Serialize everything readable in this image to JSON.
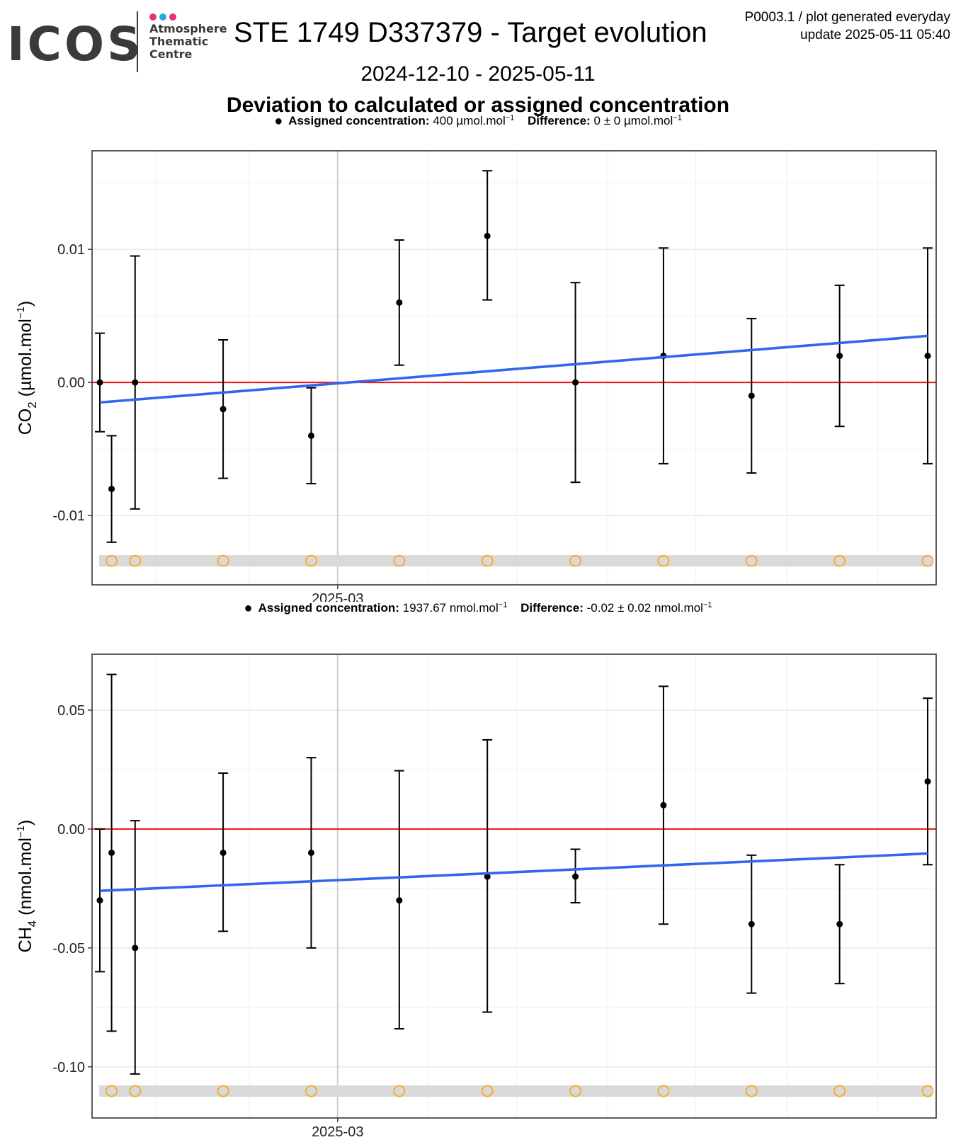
{
  "header": {
    "logo_text": "ICOS",
    "logo_sub": [
      "Atmosphere",
      "Thematic",
      "Centre"
    ],
    "logo_dot_colors": [
      "#e6317c",
      "#2aa7de",
      "#e6317c"
    ],
    "title": "STE 1749 D337379 - Target evolution",
    "meta_line1": "P0003.1 / plot generated everyday",
    "meta_line2": "update  2025-05-11 05:40",
    "date_range": "2024-12-10 - 2025-05-11",
    "deviation_title": "Deviation to calculated or assigned concentration"
  },
  "colors": {
    "trend": "#3366ee",
    "zero_line": "#ee1111",
    "points": "#000000",
    "flag_circles": "#ffa500",
    "flag_band": "#d9d9d9",
    "grid_major": "#e6e6e6",
    "grid_minor": "#f2f2f2"
  },
  "chart_data": [
    {
      "type": "scatter",
      "gas": "CO2",
      "legend": {
        "assigned_label": "Assigned concentration:",
        "assigned_value": "400 µmol.mol",
        "assigned_sup": "−1",
        "difference_label": "Difference:",
        "difference_value": "0 ± 0 µmol.mol",
        "difference_sup": "−1"
      },
      "ylabel_main": "CO",
      "ylabel_sub": "2",
      "ylabel_unit": " (µmol.mol",
      "ylabel_sup": "−1",
      "ylabel_end": ")",
      "x_dates": [
        "2024-12-10",
        "2024-12-14",
        "2024-12-22",
        "2025-01-21",
        "2025-02-20",
        "2025-03-22",
        "2025-04-21",
        "2025-05-11"
      ],
      "x_tick": "2025-03",
      "ylim": [
        -0.0152,
        0.0174
      ],
      "yticks": [
        -0.01,
        0.0,
        0.01
      ],
      "ytick_labels": [
        "-0.01",
        "0.00",
        "0.01"
      ],
      "points": [
        {
          "date": "2024-12-10",
          "y": 0.0,
          "lo": -0.0037,
          "hi": 0.0037
        },
        {
          "date": "2024-12-14",
          "y": -0.008,
          "lo": -0.012,
          "hi": -0.004
        },
        {
          "date": "2024-12-22",
          "y": 0.0,
          "lo": -0.0095,
          "hi": 0.0095
        },
        {
          "date": "2025-01-21",
          "y": -0.002,
          "lo": -0.0072,
          "hi": 0.0032
        },
        {
          "date": "2025-02-20",
          "y": -0.004,
          "lo": -0.0076,
          "hi": -0.0004
        },
        {
          "date": "2025-03-22",
          "y": 0.006,
          "lo": 0.0013,
          "hi": 0.0107
        },
        {
          "date": "2025-04-21",
          "y": 0.011,
          "lo": 0.0062,
          "hi": 0.0159
        },
        {
          "date": "2025-05-21",
          "y": 0.0,
          "lo": -0.0075,
          "hi": 0.0075
        },
        {
          "date": "2025-06-20",
          "y": 0.002,
          "lo": -0.0061,
          "hi": 0.0101
        },
        {
          "date": "2025-07-20",
          "y": -0.001,
          "lo": -0.0068,
          "hi": 0.0048
        },
        {
          "date": "2025-08-19",
          "y": 0.002,
          "lo": -0.0033,
          "hi": 0.0073
        },
        {
          "date": "2025-09-18",
          "y": 0.002,
          "lo": -0.0061,
          "hi": 0.0101
        }
      ],
      "trend": {
        "y_start": -0.0015,
        "y_end": 0.0035
      },
      "flag_y": -0.0134,
      "flag_dates": [
        "2024-12-14",
        "2024-12-22",
        "2025-01-21",
        "2025-02-20",
        "2025-03-22",
        "2025-04-21",
        "2025-05-21",
        "2025-06-20",
        "2025-07-20",
        "2025-08-19",
        "2025-09-18"
      ]
    },
    {
      "type": "scatter",
      "gas": "CH4",
      "legend": {
        "assigned_label": "Assigned concentration:",
        "assigned_value": "1937.67 nmol.mol",
        "assigned_sup": "−1",
        "difference_label": "Difference:",
        "difference_value": "-0.02 ± 0.02 nmol.mol",
        "difference_sup": "−1"
      },
      "ylabel_main": "CH",
      "ylabel_sub": "4",
      "ylabel_unit": " (nmol.mol",
      "ylabel_sup": "−1",
      "ylabel_end": ")",
      "x_tick": "2025-03",
      "ylim": [
        -0.1215,
        0.0735
      ],
      "yticks": [
        -0.1,
        -0.05,
        0.0,
        0.05
      ],
      "ytick_labels": [
        "-0.10",
        "-0.05",
        "0.00",
        "0.05"
      ],
      "points": [
        {
          "date": "2024-12-10",
          "y": -0.03,
          "lo": -0.06,
          "hi": 0.0
        },
        {
          "date": "2024-12-14",
          "y": -0.01,
          "lo": -0.085,
          "hi": 0.065
        },
        {
          "date": "2024-12-22",
          "y": -0.05,
          "lo": -0.103,
          "hi": 0.0035
        },
        {
          "date": "2025-01-21",
          "y": -0.01,
          "lo": -0.043,
          "hi": 0.0235
        },
        {
          "date": "2025-02-20",
          "y": -0.01,
          "lo": -0.05,
          "hi": 0.03
        },
        {
          "date": "2025-03-22",
          "y": -0.03,
          "lo": -0.084,
          "hi": 0.0245
        },
        {
          "date": "2025-04-21",
          "y": -0.02,
          "lo": -0.077,
          "hi": 0.0375
        },
        {
          "date": "2025-05-21",
          "y": -0.02,
          "lo": -0.031,
          "hi": -0.0085
        },
        {
          "date": "2025-06-20",
          "y": 0.01,
          "lo": -0.04,
          "hi": 0.06
        },
        {
          "date": "2025-07-20",
          "y": -0.04,
          "lo": -0.069,
          "hi": -0.011
        },
        {
          "date": "2025-08-19",
          "y": -0.04,
          "lo": -0.065,
          "hi": -0.015
        },
        {
          "date": "2025-09-18",
          "y": 0.02,
          "lo": -0.015,
          "hi": 0.055
        }
      ],
      "trend": {
        "y_start": -0.026,
        "y_end": -0.0103
      },
      "flag_y": -0.1102,
      "flag_dates": [
        "2024-12-14",
        "2024-12-22",
        "2025-01-21",
        "2025-02-20",
        "2025-03-22",
        "2025-04-21",
        "2025-05-21",
        "2025-06-20",
        "2025-07-20",
        "2025-08-19",
        "2025-09-18"
      ]
    }
  ]
}
